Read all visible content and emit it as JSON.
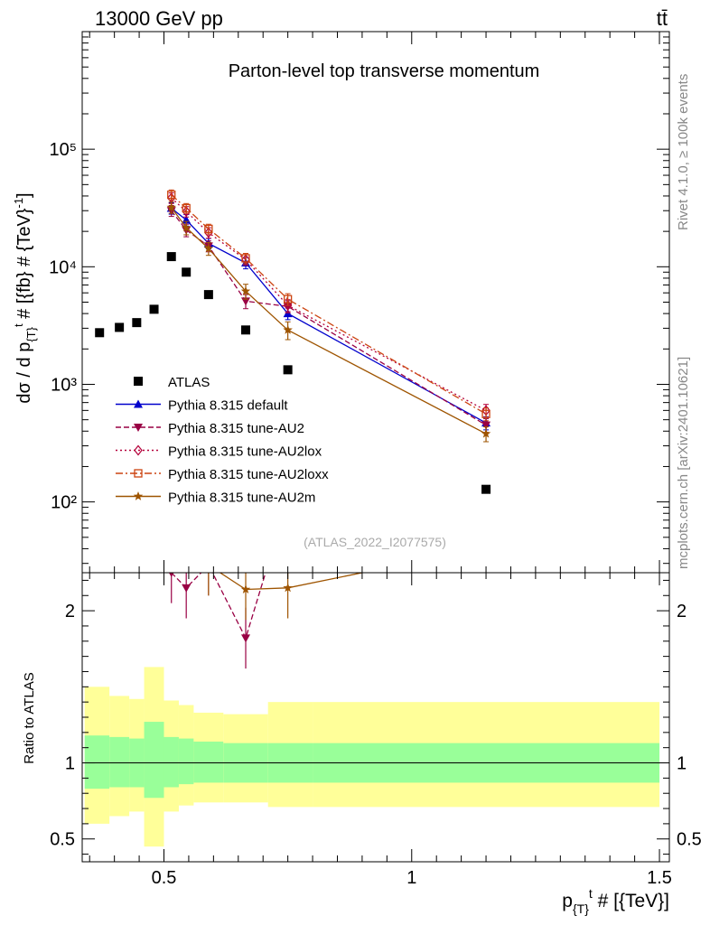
{
  "header": {
    "energy_label": "13000 GeV pp",
    "process_label": "tt̄"
  },
  "side_labels": {
    "rivet": "Rivet 4.1.0, ≥ 100k events",
    "mcplots": "mcplots.cern.ch [arXiv:2401.10621]"
  },
  "chart_data": [
    {
      "type": "scatter",
      "title": "Parton-level top transverse momentum",
      "watermark": "(ATLAS_2022_I2077575)",
      "xlabel": "p_{T}^t # [{TeV}]",
      "ylabel": "dσ / d p_{T}^t # [{fb} # {TeV}^-1]",
      "yscale": "log",
      "xlim": [
        0.335,
        1.52
      ],
      "ylim": [
        25,
        1000000
      ],
      "x_ticks": [
        {
          "v": 0.5,
          "label": "0.5"
        },
        {
          "v": 1.0,
          "label": "1"
        },
        {
          "v": 1.5,
          "label": "1.5"
        }
      ],
      "y_ticks": [
        {
          "v": 100,
          "label": "10²"
        },
        {
          "v": 1000,
          "label": "10³"
        },
        {
          "v": 10000,
          "label": "10⁴"
        },
        {
          "v": 100000,
          "label": "10⁵"
        }
      ],
      "legend_position": "lower-left",
      "series": [
        {
          "name": "ATLAS",
          "color": "#000000",
          "marker": "square",
          "line": "none",
          "x": [
            0.37,
            0.41,
            0.445,
            0.48,
            0.515,
            0.545,
            0.59,
            0.665,
            0.75,
            1.15
          ],
          "y": [
            2750,
            3050,
            3350,
            4350,
            12200,
            9000,
            5800,
            2900,
            1330,
            128
          ]
        },
        {
          "name": "Pythia 8.315 default",
          "color": "#0000cc",
          "marker": "triangle-up",
          "line": "solid",
          "x": [
            0.515,
            0.545,
            0.59,
            0.665,
            0.75,
            1.15
          ],
          "y": [
            31500,
            25000,
            15800,
            10800,
            4000,
            470
          ],
          "err": [
            3500,
            2800,
            1600,
            1200,
            450,
            60
          ]
        },
        {
          "name": "Pythia 8.315 tune-AU2",
          "color": "#990044",
          "marker": "triangle-down",
          "line": "dashed",
          "x": [
            0.515,
            0.545,
            0.59,
            0.665,
            0.75,
            1.15
          ],
          "y": [
            30000,
            20500,
            15000,
            5100,
            4600,
            450
          ],
          "err": [
            3200,
            2500,
            1600,
            700,
            550,
            60
          ]
        },
        {
          "name": "Pythia 8.315 tune-AU2lox",
          "color": "#b5003a",
          "marker": "diamond-open",
          "line": "dotted",
          "x": [
            0.515,
            0.545,
            0.59,
            0.665,
            0.75,
            1.15
          ],
          "y": [
            38500,
            29500,
            19500,
            11500,
            4700,
            600
          ],
          "err": [
            4000,
            3000,
            2000,
            1200,
            550,
            75
          ]
        },
        {
          "name": "Pythia 8.315 tune-AU2loxx",
          "color": "#cc4411",
          "marker": "square-open",
          "line": "dashdot",
          "x": [
            0.515,
            0.545,
            0.59,
            0.665,
            0.75,
            1.15
          ],
          "y": [
            41000,
            31500,
            21000,
            11800,
            5300,
            560
          ],
          "err": [
            4000,
            3000,
            2000,
            1200,
            600,
            70
          ]
        },
        {
          "name": "Pythia 8.315 tune-AU2m",
          "color": "#9e5400",
          "marker": "star",
          "line": "solid",
          "x": [
            0.515,
            0.545,
            0.59,
            0.665,
            0.75,
            1.15
          ],
          "y": [
            32000,
            21500,
            14300,
            6200,
            2900,
            380
          ],
          "err": [
            3500,
            2800,
            1800,
            900,
            500,
            55
          ]
        }
      ]
    },
    {
      "type": "line",
      "ylabel": "Ratio to ATLAS",
      "ylim": [
        0.35,
        2.25
      ],
      "xlim": [
        0.335,
        1.52
      ],
      "y_ticks": [
        {
          "v": 0.5,
          "label": "0.5"
        },
        {
          "v": 1,
          "label": "1"
        },
        {
          "v": 2,
          "label": "2"
        }
      ],
      "bins": [
        0.34,
        0.39,
        0.43,
        0.46,
        0.5,
        0.53,
        0.56,
        0.62,
        0.71,
        0.8,
        1.5
      ],
      "band_inner_lo": [
        0.83,
        0.84,
        0.84,
        0.77,
        0.84,
        0.86,
        0.87,
        0.87,
        0.87,
        0.87
      ],
      "band_inner_hi": [
        1.18,
        1.17,
        1.16,
        1.27,
        1.17,
        1.16,
        1.14,
        1.13,
        1.13,
        1.13
      ],
      "band_outer_lo": [
        0.6,
        0.65,
        0.68,
        0.45,
        0.68,
        0.72,
        0.74,
        0.74,
        0.71,
        0.71
      ],
      "band_outer_hi": [
        1.5,
        1.44,
        1.42,
        1.63,
        1.41,
        1.38,
        1.33,
        1.32,
        1.4,
        1.4
      ],
      "series": [
        {
          "name": "tune-AU2",
          "color": "#990044",
          "line": "dashed",
          "x": [
            0.515,
            0.545,
            0.59,
            0.665,
            0.705
          ],
          "y": [
            2.25,
            2.15,
            2.3,
            1.82,
            2.25
          ],
          "err": [
            0.2,
            0.2,
            0.2,
            0.2,
            0
          ]
        },
        {
          "name": "tune-AU2m",
          "color": "#9e5400",
          "line": "solid",
          "x": [
            0.59,
            0.665,
            0.75,
            0.9
          ],
          "y": [
            2.3,
            2.14,
            2.15,
            2.25
          ],
          "err": [
            0.2,
            0.2,
            0.2,
            0
          ]
        }
      ]
    }
  ]
}
